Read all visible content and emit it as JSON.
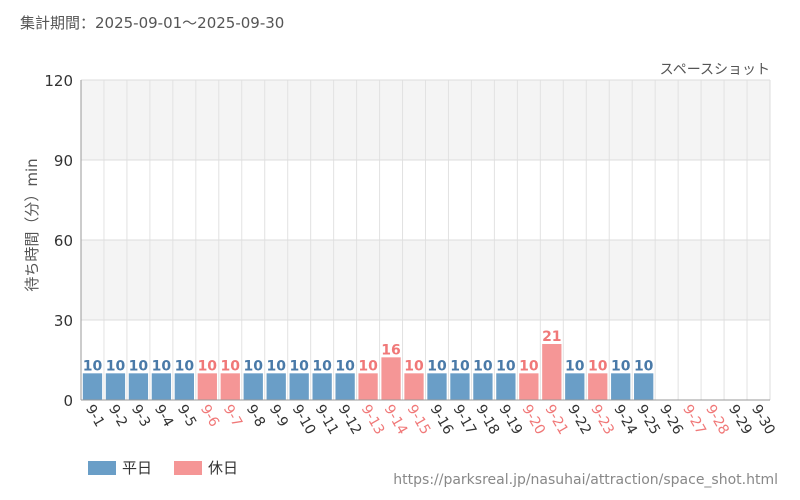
{
  "header": {
    "period": "集計期間：2025-09-01～2025-09-30"
  },
  "footer": {
    "source_url": "https://parksreal.jp/nasuhai/attraction/space_shot.html"
  },
  "colors": {
    "weekday": "#6a9ec7",
    "holiday": "#f59696",
    "weekday_label": "#4a7aa8",
    "holiday_label": "#f07878",
    "axis_text": "#333333"
  },
  "chart_data": {
    "type": "bar",
    "title": "スペースショット",
    "ylabel": "待ち時間（分）min",
    "xlabel": "",
    "ylim": [
      0,
      120
    ],
    "yticks": [
      0,
      30,
      60,
      90,
      120
    ],
    "grid": true,
    "legend_position": "bottom-left",
    "legend": [
      {
        "key": "weekday",
        "label": "平日"
      },
      {
        "key": "holiday",
        "label": "休日"
      }
    ],
    "categories": [
      "9-1",
      "9-2",
      "9-3",
      "9-4",
      "9-5",
      "9-6",
      "9-7",
      "9-8",
      "9-9",
      "9-10",
      "9-11",
      "9-12",
      "9-13",
      "9-14",
      "9-15",
      "9-16",
      "9-17",
      "9-18",
      "9-19",
      "9-20",
      "9-21",
      "9-22",
      "9-23",
      "9-24",
      "9-25",
      "9-26",
      "9-27",
      "9-28",
      "9-29",
      "9-30"
    ],
    "values": [
      10,
      10,
      10,
      10,
      10,
      10,
      10,
      10,
      10,
      10,
      10,
      10,
      10,
      16,
      10,
      10,
      10,
      10,
      10,
      10,
      21,
      10,
      10,
      10,
      10,
      null,
      null,
      null,
      null,
      null
    ],
    "day_types": [
      "weekday",
      "weekday",
      "weekday",
      "weekday",
      "weekday",
      "holiday",
      "holiday",
      "weekday",
      "weekday",
      "weekday",
      "weekday",
      "weekday",
      "holiday",
      "holiday",
      "holiday",
      "weekday",
      "weekday",
      "weekday",
      "weekday",
      "holiday",
      "holiday",
      "weekday",
      "holiday",
      "weekday",
      "weekday",
      "weekday",
      "holiday",
      "holiday",
      "weekday",
      "weekday"
    ]
  }
}
